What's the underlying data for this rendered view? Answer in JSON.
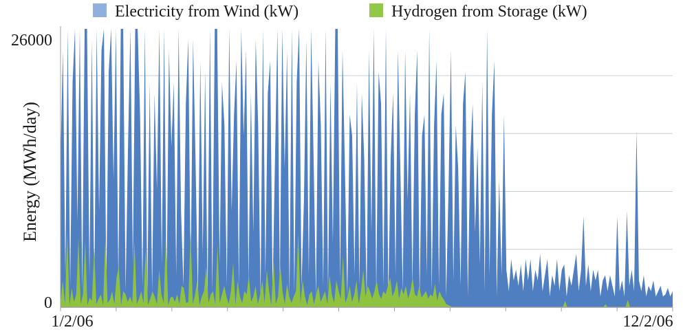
{
  "chart_data": {
    "type": "area",
    "title": "",
    "ylabel": "Energy (MWh/day)",
    "xlabel": "",
    "ylim": [
      0,
      26000
    ],
    "grid": true,
    "legend_placement": "top",
    "x_start": "1/2/06",
    "x_end": "12/2/06",
    "y_tick_labels": [
      "0",
      "26000"
    ],
    "x_tick_labels": [
      "1/2/06",
      "12/2/06"
    ],
    "series": [
      {
        "name": "Electricity from Wind (kW)",
        "color": "#4f7fc0",
        "legend_color": "#8fb0dd",
        "values": [
          14000,
          24000,
          3000,
          26000,
          2000,
          21000,
          26000,
          8000,
          26000,
          1500,
          26000,
          26000,
          3000,
          25000,
          1000,
          26000,
          9000,
          24000,
          26000,
          2000,
          22000,
          26000,
          12000,
          26000,
          2500,
          26000,
          26000,
          1500,
          15000,
          26000,
          4000,
          26000,
          26000,
          18000,
          2000,
          26000,
          1000,
          21000,
          1500,
          20000,
          11000,
          26000,
          4000,
          26000,
          1000,
          24000,
          15000,
          21000,
          3000,
          26000,
          9000,
          2000,
          19000,
          25000,
          3000,
          25000,
          14000,
          1000,
          23000,
          5000,
          22000,
          1000,
          26000,
          1500,
          26000,
          26000,
          4000,
          21000,
          17000,
          2000,
          26000,
          9000,
          18000,
          23000,
          2000,
          26000,
          16000,
          24000,
          2500,
          20000,
          7000,
          25000,
          17000,
          1000,
          26000,
          3000,
          20000,
          23000,
          1500,
          14000,
          26000,
          2000,
          26000,
          13000,
          24000,
          1000,
          26000,
          1500,
          21000,
          26000,
          2000,
          10000,
          25000,
          3000,
          26000,
          14000,
          1000,
          23000,
          17000,
          2000,
          26000,
          1500,
          21000,
          6000,
          26000,
          26000,
          2500,
          24000,
          13000,
          1000,
          18000,
          16000,
          3000,
          21000,
          2000,
          20000,
          14000,
          1000,
          24000,
          7000,
          26000,
          1500,
          22000,
          19000,
          2000,
          26000,
          1000,
          14000,
          20000,
          3000,
          24000,
          13000,
          1500,
          24000,
          10000,
          20000,
          2000,
          18000,
          24000,
          1000,
          16000,
          18000,
          3000,
          26000,
          1500,
          17000,
          23000,
          2000,
          18000,
          20000,
          1000,
          11000,
          24000,
          2500,
          17000,
          13000,
          2000,
          19000,
          22000,
          1000,
          14000,
          19000,
          7000,
          15000,
          4000,
          21000,
          1500,
          26000,
          3000,
          18000,
          23000,
          1000,
          12000,
          3000,
          18000,
          3500,
          1500,
          4500,
          2500,
          3500,
          2000,
          4000,
          1500,
          4500,
          2500,
          4500,
          1500,
          3500,
          2500,
          5000,
          1500,
          3000,
          4500,
          1000,
          3000,
          2000,
          4500,
          1500,
          3500,
          4000,
          1000,
          3000,
          2000,
          3500,
          5000,
          1500,
          3500,
          8500,
          2000,
          4000,
          1500,
          3500,
          2500,
          3500,
          1000,
          2500,
          3000,
          1500,
          3000,
          2000,
          1000,
          8500,
          1500,
          2500,
          1000,
          9000,
          2000,
          3500,
          1500,
          16500,
          2500,
          1500,
          3000,
          1000,
          2000,
          1500,
          2500,
          1000,
          1500,
          2000,
          1000,
          1200,
          1800,
          1000,
          1500
        ]
      },
      {
        "name": "Hydrogen from Storage (kW)",
        "color": "#8fc23f",
        "legend_color": "#92c84a",
        "values": [
          400,
          2500,
          300,
          7000,
          200,
          1800,
          500,
          1200,
          6500,
          300,
          1200,
          6200,
          200,
          900,
          600,
          5500,
          300,
          800,
          1200,
          200,
          6500,
          400,
          700,
          1500,
          300,
          2800,
          3800,
          200,
          1500,
          1200,
          500,
          1000,
          400,
          6200,
          300,
          800,
          1500,
          400,
          5500,
          200,
          800,
          1500,
          1000,
          300,
          3500,
          1200,
          400,
          6800,
          200,
          900,
          1000,
          500,
          1200,
          300,
          2000,
          1800,
          400,
          500,
          7000,
          300,
          1200,
          2500,
          200,
          1000,
          1500,
          3800,
          400,
          1200,
          1500,
          300,
          5800,
          400,
          1200,
          2000,
          1000,
          300,
          1500,
          4200,
          200,
          2500,
          1000,
          400,
          1500,
          1200,
          3000,
          500,
          1000,
          2000,
          300,
          1200,
          2500,
          400,
          3500,
          1500,
          200,
          4500,
          300,
          1000,
          4000,
          1500,
          300,
          2200,
          1000,
          400,
          1000,
          1500,
          7000,
          400,
          2500,
          1000,
          200,
          1200,
          1500,
          300,
          1200,
          2000,
          500,
          1000,
          1500,
          300,
          3000,
          1200,
          400,
          2500,
          1500,
          800,
          4800,
          400,
          1000,
          2000,
          500,
          1200,
          2500,
          300,
          1500,
          3500,
          1000,
          2000,
          1500,
          800,
          1500,
          2500,
          1200,
          800,
          1500,
          1200,
          2000,
          2800,
          1000,
          1500,
          2500,
          800,
          1800,
          1200,
          2000,
          800,
          1500,
          2800,
          1200,
          1000,
          2000,
          900,
          1200,
          1500,
          800,
          1200,
          1000,
          2200,
          600,
          1500,
          1000,
          700,
          300,
          200,
          100,
          0,
          0,
          0,
          0,
          0,
          0,
          0,
          0,
          0,
          0,
          0,
          0,
          0,
          0,
          0,
          0,
          0,
          0,
          0,
          0,
          0,
          0,
          0,
          0,
          0,
          0,
          0,
          0,
          0,
          0,
          0,
          0,
          0,
          0,
          0,
          0,
          0,
          0,
          0,
          0,
          0,
          0,
          0,
          0,
          0,
          0,
          0,
          0,
          0,
          0,
          600,
          0,
          0,
          0,
          0,
          0,
          0,
          0,
          0,
          0,
          0,
          0,
          0,
          0,
          0,
          0,
          0,
          0,
          300,
          0,
          0,
          0,
          0,
          0,
          0,
          0,
          0,
          0,
          700,
          0,
          0,
          0,
          0,
          0,
          0,
          0,
          0,
          0,
          0,
          0,
          0,
          0,
          0,
          0,
          0,
          0,
          0,
          0,
          0
        ]
      }
    ]
  }
}
